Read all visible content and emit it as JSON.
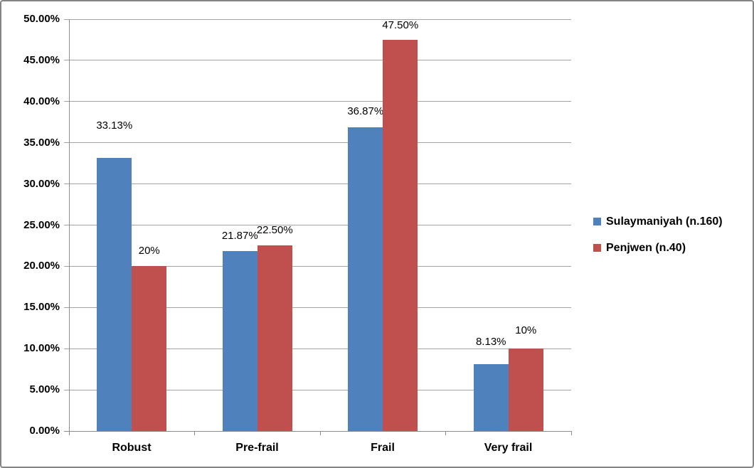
{
  "chart_data": {
    "type": "bar",
    "title": "",
    "xlabel": "",
    "ylabel": "",
    "categories": [
      "Robust",
      "Pre-frail",
      "Frail",
      "Very frail"
    ],
    "series": [
      {
        "name": "Sulaymaniyah (n.160)",
        "color": "#4F81BD",
        "values": [
          33.13,
          21.87,
          36.87,
          8.13
        ],
        "data_labels": [
          "33.13%",
          "21.87%",
          "36.87%",
          "8.13%"
        ]
      },
      {
        "name": "Penjwen (n.40)",
        "color": "#C0504D",
        "values": [
          20,
          22.5,
          47.5,
          10
        ],
        "data_labels": [
          "20%",
          "22.50%",
          "47.50%",
          "10%"
        ]
      }
    ],
    "y_axis": {
      "min": 0,
      "max": 50,
      "step": 5,
      "tick_labels": [
        "0.00%",
        "5.00%",
        "10.00%",
        "15.00%",
        "20.00%",
        "25.00%",
        "30.00%",
        "35.00%",
        "40.00%",
        "45.00%",
        "50.00%"
      ]
    },
    "legend_position": "right",
    "grid": "horizontal"
  },
  "colors": {
    "series_blue": "#4F81BD",
    "series_red": "#C0504D",
    "gridline": "#A3A3A3",
    "axis": "#8C8C8C",
    "frame_border": "#848484",
    "text": "#000000"
  }
}
